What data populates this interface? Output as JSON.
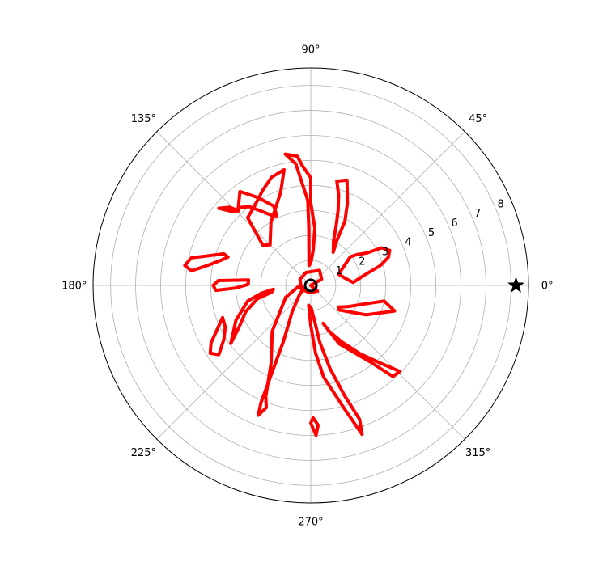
{
  "chart_data": {
    "type": "polar-contour",
    "theta_ticks": [
      "0°",
      "45°",
      "90°",
      "135°",
      "180°",
      "225°",
      "270°",
      "315°"
    ],
    "theta_tick_degrees": [
      0,
      45,
      90,
      135,
      180,
      225,
      270,
      315
    ],
    "r_ticks": [
      "1",
      "2",
      "3",
      "4",
      "5",
      "6",
      "7",
      "8"
    ],
    "r_tick_values": [
      1,
      2,
      3,
      4,
      5,
      6,
      7,
      8
    ],
    "rlim": [
      0,
      8.7
    ],
    "r_label_angle_deg": 22.5,
    "grid": true,
    "colors": {
      "contour": "#ff0000",
      "grid": "#b0b0b0",
      "axis": "#000000",
      "marker": "#000000"
    },
    "marker": {
      "shape": "star",
      "theta_deg": 0,
      "r": 8.2
    },
    "center_marker": {
      "shape": "circle",
      "theta_deg": 0,
      "r": 0
    },
    "contours": [
      [
        [
          0,
          0
        ],
        [
          30,
          0.5
        ],
        [
          60,
          0.7
        ],
        [
          110,
          0.55
        ],
        [
          150,
          0.5
        ],
        [
          200,
          0.4
        ],
        [
          260,
          0.3
        ],
        [
          320,
          0.35
        ],
        [
          360,
          0
        ]
      ],
      [
        [
          36,
          1.95
        ],
        [
          22,
          1.2
        ],
        [
          12,
          1.4
        ],
        [
          4,
          1.7
        ],
        [
          10,
          2.1
        ],
        [
          16,
          2.9
        ],
        [
          20,
          3.3
        ],
        [
          24,
          3.45
        ],
        [
          28,
          3.2
        ],
        [
          30,
          2.6
        ],
        [
          34,
          2.2
        ]
      ],
      [
        [
          56,
          1.6
        ],
        [
          60,
          2.1
        ],
        [
          62,
          2.9
        ],
        [
          66,
          3.6
        ],
        [
          71,
          4.45
        ],
        [
          76,
          4.3
        ],
        [
          73,
          3.8
        ],
        [
          70,
          3.2
        ],
        [
          67,
          2.6
        ],
        [
          63,
          2.0
        ],
        [
          58,
          1.7
        ]
      ],
      [
        [
          95,
          0.8
        ],
        [
          92,
          2.3
        ],
        [
          92,
          3.4
        ],
        [
          97,
          4.9
        ],
        [
          101,
          5.35
        ],
        [
          96,
          5.2
        ],
        [
          94,
          4.8
        ],
        [
          90,
          4.3
        ],
        [
          90,
          3.3
        ],
        [
          86,
          2.3
        ],
        [
          86,
          1.4
        ],
        [
          90,
          0.9
        ]
      ],
      [
        [
          115,
          3.5
        ],
        [
          121,
          4.1
        ],
        [
          127,
          4.7
        ],
        [
          133,
          4.25
        ],
        [
          128,
          4.0
        ],
        [
          124,
          3.6
        ],
        [
          119,
          3.2
        ],
        [
          116,
          3.1
        ]
      ],
      [
        [
          135,
          2.3
        ],
        [
          122,
          3.0
        ],
        [
          108,
          3.9
        ],
        [
          103,
          4.75
        ],
        [
          110,
          4.6
        ],
        [
          117,
          4.25
        ],
        [
          125,
          3.9
        ],
        [
          133,
          3.7
        ],
        [
          137,
          2.9
        ],
        [
          140,
          2.5
        ]
      ],
      [
        [
          134,
          4.15
        ],
        [
          136,
          4.5
        ],
        [
          140,
          4.8
        ],
        [
          137,
          4.35
        ]
      ],
      [
        [
          160,
          3.7
        ],
        [
          167,
          4.9
        ],
        [
          171,
          5.1
        ],
        [
          173,
          4.8
        ],
        [
          169,
          4.2
        ],
        [
          164,
          3.7
        ],
        [
          161,
          3.5
        ]
      ],
      [
        [
          175,
          2.5
        ],
        [
          177,
          3.7
        ],
        [
          180,
          3.9
        ],
        [
          183,
          3.8
        ],
        [
          182,
          3.0
        ],
        [
          179,
          2.5
        ]
      ],
      [
        [
          186,
          1.5
        ],
        [
          189,
          2.0
        ],
        [
          194,
          2.6
        ],
        [
          205,
          3.3
        ],
        [
          216,
          3.95
        ],
        [
          210,
          3.3
        ],
        [
          202,
          2.8
        ],
        [
          194,
          2.2
        ],
        [
          190,
          1.6
        ]
      ],
      [
        [
          200,
          3.75
        ],
        [
          210,
          4.6
        ],
        [
          214,
          4.85
        ],
        [
          217,
          4.6
        ],
        [
          212,
          4.1
        ],
        [
          206,
          3.8
        ]
      ],
      [
        [
          186,
          0.5
        ],
        [
          205,
          1.1
        ],
        [
          230,
          2.4
        ],
        [
          243,
          3.5
        ],
        [
          248,
          4.8
        ],
        [
          250,
          5.2
        ],
        [
          248,
          5.6
        ],
        [
          247,
          5.1
        ],
        [
          246,
          3.8
        ],
        [
          244,
          2.5
        ],
        [
          235,
          1.3
        ],
        [
          220,
          0.6
        ],
        [
          200,
          0.3
        ]
      ],
      [
        [
          264,
          0.8
        ],
        [
          270,
          1.6
        ],
        [
          274,
          2.7
        ],
        [
          278,
          3.7
        ],
        [
          285,
          5.05
        ],
        [
          289,
          6.3
        ],
        [
          290,
          5.7
        ],
        [
          287,
          4.6
        ],
        [
          283,
          3.4
        ],
        [
          279,
          2.3
        ],
        [
          276,
          1.4
        ],
        [
          271,
          0.9
        ]
      ],
      [
        [
          270,
          5.5
        ],
        [
          272,
          6.0
        ],
        [
          273,
          5.6
        ],
        [
          271,
          5.3
        ]
      ],
      [
        [
          288,
          1.6
        ],
        [
          296,
          2.6
        ],
        [
          308,
          3.9
        ],
        [
          312,
          4.9
        ],
        [
          316,
          4.95
        ],
        [
          312,
          4.2
        ],
        [
          306,
          3.4
        ],
        [
          299,
          2.6
        ],
        [
          292,
          2.0
        ]
      ],
      [
        [
          319,
          1.5
        ],
        [
          332,
          2.5
        ],
        [
          343,
          3.5
        ],
        [
          348,
          3.0
        ],
        [
          340,
          2.2
        ],
        [
          330,
          1.7
        ],
        [
          322,
          1.4
        ]
      ]
    ]
  }
}
